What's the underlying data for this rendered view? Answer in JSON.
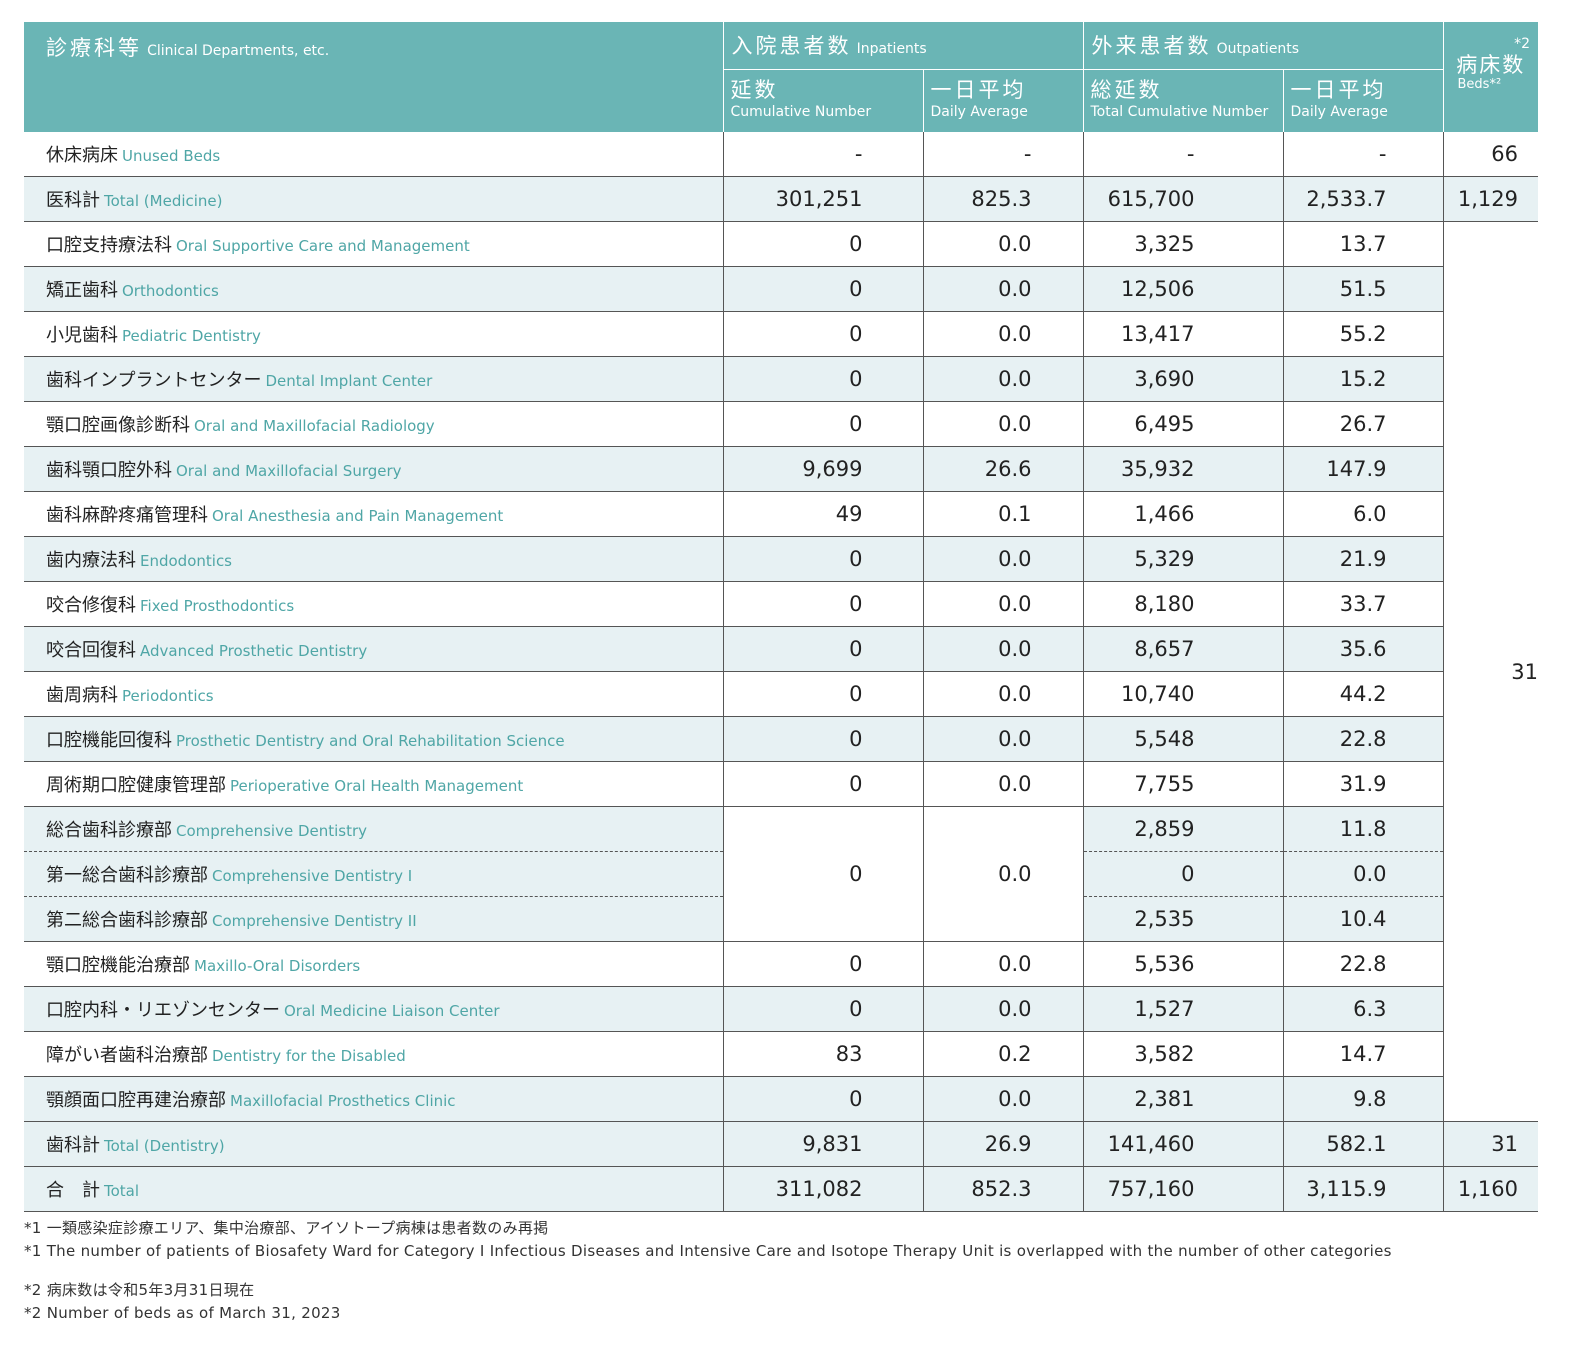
{
  "header": {
    "dept_jp": "診療科等",
    "dept_en": "Clinical Departments, etc.",
    "inpatients_jp": "入院患者数",
    "inpatients_en": "Inpatients",
    "outpatients_jp": "外来患者数",
    "outpatients_en": "Outpatients",
    "in_cum_jp": "延数",
    "in_cum_en": "Cumulative Number",
    "in_avg_jp": "一日平均",
    "in_avg_en": "Daily Average",
    "out_cum_jp": "総延数",
    "out_cum_en": "Total Cumulative Number",
    "out_avg_jp": "一日平均",
    "out_avg_en": "Daily Average",
    "beds_note": "*2",
    "beds_jp": "病床数",
    "beds_en": "Beds*²"
  },
  "rows": [
    {
      "jp": "休床病床",
      "en": "Unused Beds",
      "in_cum": "-",
      "in_avg": "-",
      "out_cum": "-",
      "out_avg": "-",
      "beds": "66"
    },
    {
      "jp": "医科計",
      "en": "Total (Medicine)",
      "in_cum": "301,251",
      "in_avg": "825.3",
      "out_cum": "615,700",
      "out_avg": "2,533.7",
      "beds": "1,129"
    },
    {
      "jp": "口腔支持療法科",
      "en": "Oral Supportive Care and Management",
      "in_cum": "0",
      "in_avg": "0.0",
      "out_cum": "3,325",
      "out_avg": "13.7"
    },
    {
      "jp": "矯正歯科",
      "en": "Orthodontics",
      "in_cum": "0",
      "in_avg": "0.0",
      "out_cum": "12,506",
      "out_avg": "51.5"
    },
    {
      "jp": "小児歯科",
      "en": "Pediatric Dentistry",
      "in_cum": "0",
      "in_avg": "0.0",
      "out_cum": "13,417",
      "out_avg": "55.2"
    },
    {
      "jp": "歯科インプラントセンター",
      "en": "Dental Implant Center",
      "in_cum": "0",
      "in_avg": "0.0",
      "out_cum": "3,690",
      "out_avg": "15.2"
    },
    {
      "jp": "顎口腔画像診断科",
      "en": "Oral and Maxillofacial Radiology",
      "in_cum": "0",
      "in_avg": "0.0",
      "out_cum": "6,495",
      "out_avg": "26.7"
    },
    {
      "jp": "歯科顎口腔外科",
      "en": "Oral and Maxillofacial Surgery",
      "in_cum": "9,699",
      "in_avg": "26.6",
      "out_cum": "35,932",
      "out_avg": "147.9"
    },
    {
      "jp": "歯科麻酔疼痛管理科",
      "en": "Oral Anesthesia and Pain Management",
      "in_cum": "49",
      "in_avg": "0.1",
      "out_cum": "1,466",
      "out_avg": "6.0"
    },
    {
      "jp": "歯内療法科",
      "en": "Endodontics",
      "in_cum": "0",
      "in_avg": "0.0",
      "out_cum": "5,329",
      "out_avg": "21.9"
    },
    {
      "jp": "咬合修復科",
      "en": "Fixed Prosthodontics",
      "in_cum": "0",
      "in_avg": "0.0",
      "out_cum": "8,180",
      "out_avg": "33.7"
    },
    {
      "jp": "咬合回復科",
      "en": "Advanced Prosthetic Dentistry",
      "in_cum": "0",
      "in_avg": "0.0",
      "out_cum": "8,657",
      "out_avg": "35.6"
    },
    {
      "jp": "歯周病科",
      "en": "Periodontics",
      "in_cum": "0",
      "in_avg": "0.0",
      "out_cum": "10,740",
      "out_avg": "44.2"
    },
    {
      "jp": "口腔機能回復科",
      "en": "Prosthetic Dentistry and Oral Rehabilitation Science",
      "in_cum": "0",
      "in_avg": "0.0",
      "out_cum": "5,548",
      "out_avg": "22.8"
    },
    {
      "jp": "周術期口腔健康管理部",
      "en": "Perioperative Oral Health Management",
      "in_cum": "0",
      "in_avg": "0.0",
      "out_cum": "7,755",
      "out_avg": "31.9"
    },
    {
      "jp": "総合歯科診療部",
      "en": "Comprehensive Dentistry",
      "out_cum": "2,859",
      "out_avg": "11.8"
    },
    {
      "jp": "第一総合歯科診療部",
      "en": "Comprehensive Dentistry I",
      "out_cum": "0",
      "out_avg": "0.0"
    },
    {
      "jp": "第二総合歯科診療部",
      "en": "Comprehensive Dentistry II",
      "out_cum": "2,535",
      "out_avg": "10.4"
    },
    {
      "jp": "顎口腔機能治療部",
      "en": "Maxillo-Oral Disorders",
      "in_cum": "0",
      "in_avg": "0.0",
      "out_cum": "5,536",
      "out_avg": "22.8"
    },
    {
      "jp": "口腔内科・リエゾンセンター",
      "en": "Oral Medicine Liaison Center",
      "in_cum": "0",
      "in_avg": "0.0",
      "out_cum": "1,527",
      "out_avg": "6.3"
    },
    {
      "jp": "障がい者歯科治療部",
      "en": "Dentistry for the Disabled",
      "in_cum": "83",
      "in_avg": "0.2",
      "out_cum": "3,582",
      "out_avg": "14.7"
    },
    {
      "jp": "顎顔面口腔再建治療部",
      "en": "Maxillofacial Prosthetics Clinic",
      "in_cum": "0",
      "in_avg": "0.0",
      "out_cum": "2,381",
      "out_avg": "9.8"
    },
    {
      "jp": "歯科計",
      "en": "Total (Dentistry)",
      "in_cum": "9,831",
      "in_avg": "26.9",
      "out_cum": "141,460",
      "out_avg": "582.1",
      "beds": "31"
    },
    {
      "jp": "合　計",
      "en": "Total",
      "in_cum": "311,082",
      "in_avg": "852.3",
      "out_cum": "757,160",
      "out_avg": "3,115.9",
      "beds": "1,160"
    }
  ],
  "merged": {
    "comprehensive_in_cum": "0",
    "comprehensive_in_avg": "0.0",
    "dental_beds": "31"
  },
  "footnotes": {
    "n1_jp": "*1 一類感染症診療エリア、集中治療部、アイソトープ病棟は患者数のみ再掲",
    "n1_en": "*1 The number of patients of Biosafety Ward for Category I Infectious Diseases and Intensive Care and Isotope Therapy Unit is overlapped with the number of other categories",
    "n2_jp": "*2 病床数は令和5年3月31日現在",
    "n2_en": "*2 Number of beds as of March 31, 2023"
  }
}
